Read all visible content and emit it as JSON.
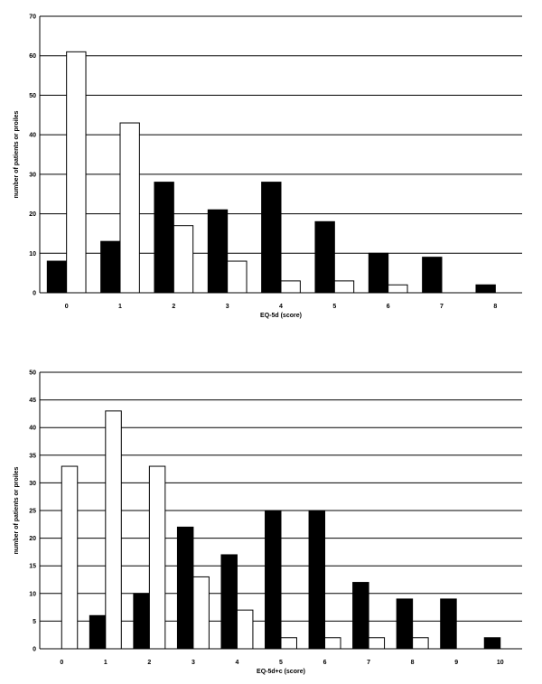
{
  "chart_data": [
    {
      "type": "bar",
      "categories": [
        "0",
        "1",
        "2",
        "3",
        "4",
        "5",
        "6",
        "7",
        "8"
      ],
      "series": [
        {
          "values": [
            8,
            13,
            28,
            21,
            28,
            18,
            10,
            9,
            2
          ],
          "color": "#000000"
        },
        {
          "values": [
            61,
            43,
            17,
            8,
            3,
            3,
            2,
            null,
            null
          ],
          "color": "#ffffff"
        }
      ],
      "ylim": [
        0,
        70
      ],
      "yticks": [
        0,
        10,
        20,
        30,
        40,
        50,
        60,
        70
      ],
      "xlabel": "EQ-5d (score)",
      "ylabel": "number of patients or proiles",
      "grid": true
    },
    {
      "type": "bar",
      "categories": [
        "0",
        "1",
        "2",
        "3",
        "4",
        "5",
        "6",
        "7",
        "8",
        "9",
        "10"
      ],
      "series": [
        {
          "values": [
            null,
            6,
            10,
            22,
            17,
            25,
            25,
            12,
            9,
            9,
            2
          ],
          "color": "#000000"
        },
        {
          "values": [
            33,
            43,
            33,
            13,
            7,
            2,
            2,
            2,
            2,
            null,
            null
          ],
          "color": "#ffffff"
        }
      ],
      "ylim": [
        0,
        50
      ],
      "yticks": [
        0,
        5,
        10,
        15,
        20,
        25,
        30,
        35,
        40,
        45,
        50
      ],
      "xlabel": "EQ-5d+c (score)",
      "ylabel": "number of patients or proiles",
      "grid": true
    }
  ]
}
